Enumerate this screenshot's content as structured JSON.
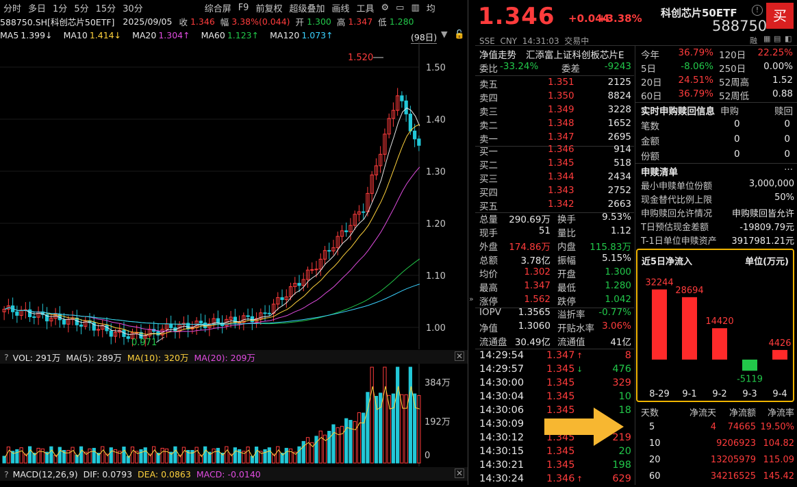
{
  "toolbar": {
    "periods": [
      "分时",
      "多日",
      "1分",
      "5分",
      "15分",
      "30分"
    ],
    "actions": [
      "综合屏",
      "F9",
      "前复权",
      "超级叠加",
      "画线",
      "工具"
    ],
    "right": "均"
  },
  "info": {
    "code": "588750.SH[科创芯片50ETF]",
    "date": "2025/09/05",
    "close_label": "收",
    "close": "1.346",
    "amp_label": "幅",
    "amp": "3.38%(0.044)",
    "open_label": "开",
    "open": "1.300",
    "high_label": "高",
    "high": "1.347",
    "low_label": "低",
    "low": "1.280"
  },
  "ma": [
    {
      "name": "MA5",
      "value": "1.399↓",
      "color": "#e8e8e8"
    },
    {
      "name": "MA10",
      "value": "1.414↓",
      "color": "#ffd23c"
    },
    {
      "name": "MA20",
      "value": "1.304↑",
      "color": "#e04ce0"
    },
    {
      "name": "MA60",
      "value": "1.123↑",
      "color": "#22c84a"
    },
    {
      "name": "MA120",
      "value": "1.073↑",
      "color": "#3ad1ff"
    }
  ],
  "range_label": "(98日)",
  "price_axis": [
    "1.50",
    "1.40",
    "1.30",
    "1.20",
    "1.10",
    "1.00"
  ],
  "max_label": "1.520",
  "min_label": "0.971",
  "vol": {
    "label": "VOL: 291万",
    "ma5": "MA(5): 289万",
    "ma10": "MA(10): 320万",
    "ma20": "MA(20): 209万",
    "axis": [
      "384万",
      "192万",
      "0"
    ]
  },
  "macd": {
    "label": "MACD(12,26,9)",
    "dif": "DIF: 0.0793",
    "dea": "DEA: 0.0863",
    "macd": "MACD: -0.0140"
  },
  "quote": {
    "price": "1.346",
    "change": "+0.044",
    "pct": "+3.38%",
    "name": "科创芯片50ETF",
    "code": "588750",
    "sub": "SSE  CNY  14:31:03  交易中",
    "buy_btn": "买",
    "rong": "融"
  },
  "nav_row": {
    "label": "净值走势",
    "value": "汇添富上证科创板芯片E"
  },
  "weibi": {
    "label": "委比",
    "value": "-33.24%",
    "label2": "委差",
    "value2": "-9243"
  },
  "asks": [
    {
      "l": "卖五",
      "p": "1.351",
      "v": "2125"
    },
    {
      "l": "卖四",
      "p": "1.350",
      "v": "8824"
    },
    {
      "l": "卖三",
      "p": "1.349",
      "v": "3228"
    },
    {
      "l": "卖二",
      "p": "1.348",
      "v": "1652"
    },
    {
      "l": "卖一",
      "p": "1.347",
      "v": "2695"
    }
  ],
  "bids": [
    {
      "l": "买一",
      "p": "1.346",
      "v": "914"
    },
    {
      "l": "买二",
      "p": "1.345",
      "v": "518"
    },
    {
      "l": "买三",
      "p": "1.344",
      "v": "2434"
    },
    {
      "l": "买四",
      "p": "1.343",
      "v": "2752"
    },
    {
      "l": "买五",
      "p": "1.342",
      "v": "2663"
    }
  ],
  "stats": [
    {
      "l1": "总量",
      "v1": "290.69万",
      "c1": "#e8e8e8",
      "l2": "换手",
      "v2": "9.53%",
      "c2": "#e8e8e8"
    },
    {
      "l1": "现手",
      "v1": "51",
      "c1": "#e8e8e8",
      "l2": "量比",
      "v2": "1.12",
      "c2": "#e8e8e8"
    },
    {
      "l1": "外盘",
      "v1": "174.86万",
      "c1": "#ff3c3c",
      "l2": "内盘",
      "v2": "115.83万",
      "c2": "#22c84a"
    },
    {
      "l1": "总额",
      "v1": "3.78亿",
      "c1": "#e8e8e8",
      "l2": "振幅",
      "v2": "5.15%",
      "c2": "#e8e8e8"
    },
    {
      "l1": "均价",
      "v1": "1.302",
      "c1": "#ff3c3c",
      "l2": "开盘",
      "v2": "1.300",
      "c2": "#22c84a"
    },
    {
      "l1": "最高",
      "v1": "1.347",
      "c1": "#ff3c3c",
      "l2": "最低",
      "v2": "1.280",
      "c2": "#22c84a"
    },
    {
      "l1": "涨停",
      "v1": "1.562",
      "c1": "#ff3c3c",
      "l2": "跌停",
      "v2": "1.042",
      "c2": "#22c84a"
    }
  ],
  "stats2": [
    {
      "l1": "IOPV",
      "v1": "1.3565",
      "c1": "#e8e8e8",
      "l2": "溢折率",
      "v2": "-0.77%",
      "c2": "#22c84a"
    },
    {
      "l1": "净值",
      "v1": "1.3060",
      "c1": "#e8e8e8",
      "l2": "开贴水率",
      "v2": "3.06%",
      "c2": "#ff3c3c"
    },
    {
      "l1": "流通盘",
      "v1": "30.49亿",
      "c1": "#e8e8e8",
      "l2": "流通值",
      "v2": "41亿",
      "c2": "#e8e8e8"
    }
  ],
  "ticks": [
    {
      "t": "14:29:54",
      "p": "1.347",
      "arrow": "↑",
      "v": "8",
      "pc": "#ff3c3c",
      "vc": "#ff3c3c"
    },
    {
      "t": "14:29:57",
      "p": "1.345",
      "arrow": "↓",
      "v": "476",
      "pc": "#ff3c3c",
      "vc": "#22c84a"
    },
    {
      "t": "14:30:00",
      "p": "1.345",
      "arrow": "",
      "v": "329",
      "pc": "#ff3c3c",
      "vc": "#ff3c3c"
    },
    {
      "t": "14:30:04",
      "p": "1.345",
      "arrow": "",
      "v": "10",
      "pc": "#ff3c3c",
      "vc": "#22c84a"
    },
    {
      "t": "14:30:06",
      "p": "1.345",
      "arrow": "",
      "v": "18",
      "pc": "#ff3c3c",
      "vc": "#22c84a"
    },
    {
      "t": "14:30:09",
      "p": "",
      "arrow": "",
      "v": "",
      "pc": "#ff3c3c",
      "vc": "#ff3c3c"
    },
    {
      "t": "14:30:12",
      "p": "1.345",
      "arrow": "",
      "v": "219",
      "pc": "#ff3c3c",
      "vc": "#ff3c3c"
    },
    {
      "t": "14:30:15",
      "p": "1.345",
      "arrow": "",
      "v": "20",
      "pc": "#ff3c3c",
      "vc": "#22c84a"
    },
    {
      "t": "14:30:21",
      "p": "1.345",
      "arrow": "",
      "v": "198",
      "pc": "#ff3c3c",
      "vc": "#22c84a"
    },
    {
      "t": "14:30:24",
      "p": "1.346",
      "arrow": "↑",
      "v": "629",
      "pc": "#ff3c3c",
      "vc": "#ff3c3c"
    }
  ],
  "perf": [
    {
      "l1": "今年",
      "v1": "36.79%",
      "c1": "#ff3c3c",
      "l2": "120日",
      "v2": "22.25%",
      "c2": "#ff3c3c"
    },
    {
      "l1": "5日",
      "v1": "-8.06%",
      "c1": "#22c84a",
      "l2": "250日",
      "v2": "0.00%",
      "c2": "#e8e8e8"
    },
    {
      "l1": "20日",
      "v1": "24.51%",
      "c1": "#ff3c3c",
      "l2": "52周高",
      "v2": "1.52",
      "c2": "#e8e8e8"
    },
    {
      "l1": "60日",
      "v1": "36.79%",
      "c1": "#ff3c3c",
      "l2": "52周低",
      "v2": "0.88",
      "c2": "#e8e8e8"
    }
  ],
  "subs": {
    "title": "实时申购赎回信息",
    "h1": "申购",
    "h2": "赎回",
    "rows": [
      {
        "l": "笔数",
        "a": "0",
        "b": "0"
      },
      {
        "l": "金额",
        "a": "0",
        "b": "0"
      },
      {
        "l": "份额",
        "a": "0",
        "b": "0"
      }
    ]
  },
  "list": {
    "title": "申赎清单",
    "more": "···",
    "rows": [
      {
        "l": "最小申赎单位份额",
        "v": "3,000,000"
      },
      {
        "l": "现金替代比例上限",
        "v": "50%"
      },
      {
        "l": "申购赎回允许情况",
        "v": "申购赎回皆允许"
      },
      {
        "l": "T日预估现金差额",
        "v": "-19809.79元"
      },
      {
        "l": "T-1日单位申赎资产",
        "v": "3917981.21元"
      }
    ]
  },
  "flow": {
    "title": "近5日净流入",
    "unit": "单位(万元)"
  },
  "chart_data": {
    "type": "bar",
    "title": "近5日净流入",
    "ylabel": "单位(万元)",
    "categories": [
      "8-29",
      "9-1",
      "9-2",
      "9-3",
      "9-4"
    ],
    "values": [
      32244,
      28694,
      14420,
      -5119,
      4426
    ]
  },
  "flow_table": {
    "headers": [
      "天数",
      "净流天",
      "净流额",
      "净流率"
    ],
    "rows": [
      {
        "d": "5",
        "n": "4",
        "a": "74665",
        "r": "19.50%"
      },
      {
        "d": "10",
        "n": "",
        "a": "9206923",
        "r": "104.82"
      },
      {
        "d": "20",
        "n": "",
        "a": "13205979",
        "r": "115.09"
      },
      {
        "d": "60",
        "n": "",
        "a": "34216525",
        "r": "145.42"
      }
    ]
  }
}
